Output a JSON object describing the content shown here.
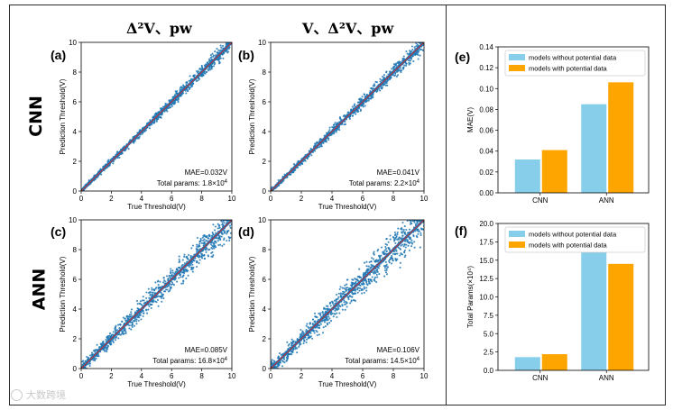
{
  "figure": {
    "col_titles": [
      "Δ²V、pw",
      "V、Δ²V、pw"
    ],
    "row_labels": [
      "CNN",
      "ANN"
    ],
    "watermark": "大数跨境"
  },
  "colors": {
    "scatter": "#1f77b4",
    "diagonal": "#d62728",
    "without": "#87ceeb",
    "with": "#ffa500"
  },
  "chart_data": [
    {
      "id": "a",
      "panel": "(a)",
      "type": "scatter",
      "xlabel": "True Threshold(V)",
      "ylabel": "Prediction Threshold(V)",
      "xlim": [
        0,
        10
      ],
      "ylim": [
        0,
        10
      ],
      "ticks": [
        "0",
        "2",
        "4",
        "6",
        "8",
        "10"
      ],
      "mae": "MAE=0.032V",
      "params": "Total params: 1.8×10",
      "params_exp": "4",
      "spread": 0.25
    },
    {
      "id": "b",
      "panel": "(b)",
      "type": "scatter",
      "xlabel": "True Threshold(V)",
      "ylabel": "Prediction Threshold(V)",
      "xlim": [
        0,
        10
      ],
      "ylim": [
        0,
        10
      ],
      "ticks": [
        "0",
        "2",
        "4",
        "6",
        "8",
        "10"
      ],
      "mae": "MAE=0.041V",
      "params": "Total params: 2.2×10",
      "params_exp": "4",
      "spread": 0.3
    },
    {
      "id": "c",
      "panel": "(c)",
      "type": "scatter",
      "xlabel": "True Threshold(V)",
      "ylabel": "Prediction Threshold(V)",
      "xlim": [
        0,
        10
      ],
      "ylim": [
        0,
        10
      ],
      "ticks": [
        "0",
        "2",
        "4",
        "6",
        "8",
        "10"
      ],
      "mae": "MAE=0.085V",
      "params": "Total params: 16.8×10",
      "params_exp": "4",
      "spread": 0.6
    },
    {
      "id": "d",
      "panel": "(d)",
      "type": "scatter",
      "xlabel": "True Threshold(V)",
      "ylabel": "Prediction Threshold(V)",
      "xlim": [
        0,
        10
      ],
      "ylim": [
        0,
        10
      ],
      "ticks": [
        "0",
        "2",
        "4",
        "6",
        "8",
        "10"
      ],
      "mae": "MAE=0.106V",
      "params": "Total params: 14.5×10",
      "params_exp": "4",
      "spread": 0.75
    },
    {
      "id": "e",
      "panel": "(e)",
      "type": "bar",
      "categories": [
        "CNN",
        "ANN"
      ],
      "series": [
        {
          "name": "models without potential data",
          "values": [
            0.032,
            0.085
          ]
        },
        {
          "name": "models with potential data",
          "values": [
            0.041,
            0.106
          ]
        }
      ],
      "ylabel": "MAE(V)",
      "ylim": [
        0,
        0.14
      ],
      "yticks": [
        "0.00",
        "0.02",
        "0.04",
        "0.06",
        "0.08",
        "0.10",
        "0.12",
        "0.14"
      ],
      "legend": "top-right"
    },
    {
      "id": "f",
      "panel": "(f)",
      "type": "bar",
      "categories": [
        "CNN",
        "ANN"
      ],
      "series": [
        {
          "name": "models without potential data",
          "values": [
            1.8,
            16.8
          ]
        },
        {
          "name": "models with potential data",
          "values": [
            2.2,
            14.5
          ]
        }
      ],
      "ylabel": "Total Params(×10⁴)",
      "ylim": [
        0,
        20
      ],
      "yticks": [
        "0.0",
        "2.5",
        "5.0",
        "7.5",
        "10.0",
        "12.5",
        "15.0",
        "17.5",
        "20.0"
      ],
      "legend": "top-right"
    }
  ]
}
